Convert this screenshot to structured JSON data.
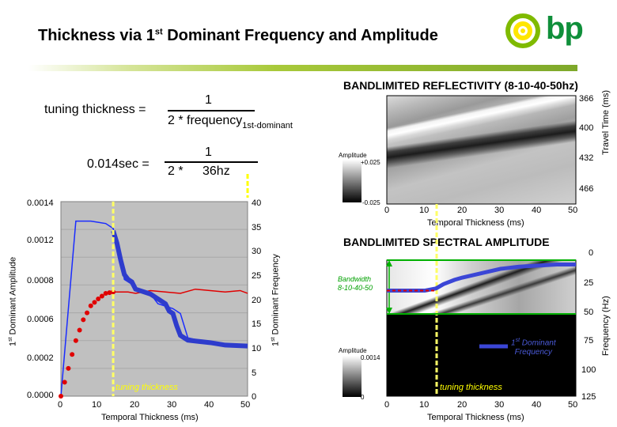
{
  "slide": {
    "title": "Thickness via 1",
    "title_sup": "st",
    "title_rest": " Dominant Frequency and Amplitude",
    "logo_text": "bp"
  },
  "equations": {
    "tuning_label": "tuning thickness =",
    "numerator_1": "1",
    "denominator_1": "2 * frequency",
    "denominator_1_sub": "1st-dominant",
    "value_label": "0.014sec =",
    "numerator_2": "1",
    "denominator_2_a": "2 *",
    "denominator_2_b": "36hz"
  },
  "left_chart": {
    "y_left_label_sup": "st",
    "y_left_label": "1",
    "y_left_label_rest": " Dominant Amplitude",
    "y_right_label": "1",
    "y_right_label_sup": "st",
    "y_right_label_rest": " Dominant Frequency",
    "x_label": "Temporal Thickness (ms)",
    "annotation": "tuning thickness",
    "y_left_ticks": [
      "0.0014",
      "0.0012",
      "0.0008",
      "0.0006",
      "0.0002",
      "0.0000"
    ],
    "y_right_ticks": [
      "40",
      "35",
      "30",
      "25",
      "20",
      "15",
      "10",
      "5",
      "0"
    ],
    "x_ticks": [
      "0",
      "10",
      "20",
      "30",
      "40",
      "50"
    ]
  },
  "reflectivity_panel": {
    "title": "BANDLIMITED REFLECTIVITY (8-10-40-50hz)",
    "y_ticks": [
      "366",
      "400",
      "432",
      "466"
    ],
    "x_ticks": [
      "0",
      "10",
      "20",
      "30",
      "40",
      "50"
    ],
    "x_label": "Temporal Thickness (ms)",
    "y_label": "Travel Time (ms)",
    "colorbar_label": "Amplitude",
    "colorbar_max": "+0.025",
    "colorbar_min": "-0.025"
  },
  "spectral_panel": {
    "title": "BANDLIMITED SPECTRAL AMPLITUDE",
    "y_ticks": [
      "0",
      "25",
      "50",
      "75",
      "100",
      "125"
    ],
    "x_ticks": [
      "0",
      "10",
      "20",
      "30",
      "40",
      "50"
    ],
    "x_label": "Temporal Thickness (ms)",
    "y_label": "Frequency (Hz)",
    "bandwidth_label": "Bandwidth",
    "bandwidth_value": "8-10-40-50",
    "legend_label_1": "1",
    "legend_label_sup": "st",
    "legend_label_rest": " Dominant",
    "legend_label_2": "Frequency",
    "annotation": "tuning thickness",
    "colorbar_label": "Amplitude",
    "colorbar_max": "0.0014",
    "colorbar_min": "0"
  },
  "chart_data": [
    {
      "type": "line",
      "title": "",
      "xlabel": "Temporal Thickness (ms)",
      "ylabel": "1st Dominant Amplitude",
      "ylabel_right": "1st Dominant Frequency",
      "xlim": [
        0,
        50
      ],
      "ylim": [
        0,
        0.0014
      ],
      "ylim_right": [
        0,
        40
      ],
      "x": [
        0,
        2,
        4,
        6,
        8,
        10,
        12,
        14,
        16,
        20,
        24,
        26,
        30,
        34,
        40,
        44,
        50
      ],
      "series": [
        {
          "name": "1st Dominant Amplitude (red dotted)",
          "axis": "left",
          "x": [
            0,
            2,
            4,
            6,
            8,
            10,
            12,
            14
          ],
          "values": [
            0,
            0.0002,
            0.0004,
            0.00055,
            0.00065,
            0.0007,
            0.00074,
            0.00075
          ]
        },
        {
          "name": "1st Dominant Amplitude (red line)",
          "axis": "left",
          "x": [
            14,
            18,
            20,
            24,
            28,
            32,
            36,
            40,
            44,
            48,
            50
          ],
          "values": [
            0.00075,
            0.00075,
            0.00074,
            0.00076,
            0.00075,
            0.00074,
            0.00077,
            0.00076,
            0.00075,
            0.00076,
            0.00074
          ]
        },
        {
          "name": "1st Dominant Frequency (blue line)",
          "axis": "right",
          "x": [
            0,
            4,
            8,
            12,
            14,
            16,
            17,
            19,
            20,
            24,
            26,
            30,
            32,
            34,
            40,
            44,
            50
          ],
          "values": [
            0,
            36,
            36,
            35.5,
            34.5,
            28,
            24,
            23,
            22,
            21,
            19,
            18,
            17,
            12,
            11,
            10.5,
            10.3
          ]
        },
        {
          "name": "1st Dominant Frequency (thick blue)",
          "axis": "right",
          "x": [
            14,
            15,
            16,
            17,
            18,
            19,
            20,
            24,
            26,
            28,
            29,
            30,
            31,
            32,
            33,
            34,
            40,
            44,
            50
          ],
          "values": [
            34,
            31.5,
            28,
            25,
            24,
            23.5,
            22,
            21,
            20,
            19,
            17.5,
            17,
            14.5,
            12.5,
            12,
            11.5,
            11,
            10.5,
            10.3
          ]
        }
      ],
      "annotation_x": 14
    },
    {
      "type": "line",
      "title": "BANDLIMITED SPECTRAL AMPLITUDE",
      "xlabel": "Temporal Thickness (ms)",
      "ylabel": "Frequency (Hz)",
      "xlim": [
        0,
        50
      ],
      "ylim": [
        125,
        0
      ],
      "series": [
        {
          "name": "1st Dominant Frequency",
          "x": [
            0,
            5,
            10,
            13,
            15,
            18,
            20,
            25,
            30,
            35,
            40,
            45,
            50
          ],
          "values": [
            28,
            28,
            28,
            26,
            22,
            18,
            16,
            12,
            8,
            6,
            5,
            4,
            4
          ]
        }
      ],
      "annotation_x": 14
    }
  ]
}
